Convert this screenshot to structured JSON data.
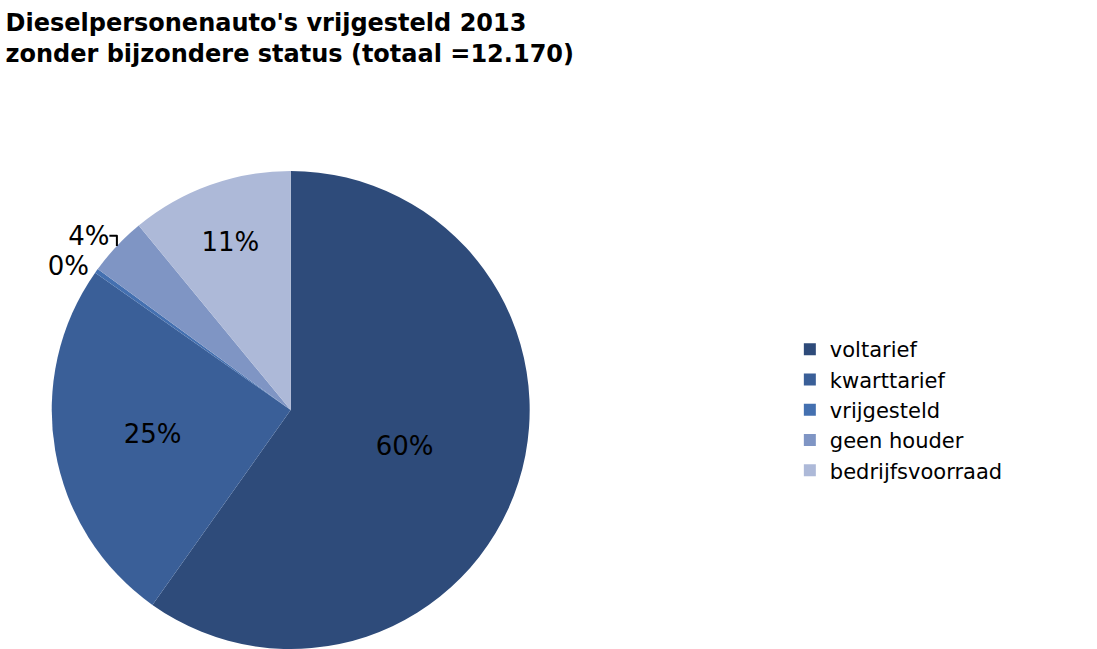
{
  "chart_data": {
    "type": "pie",
    "title": [
      "Dieselpersonenauto's vrijgesteld 2013",
      "zonder bijzondere status (totaal =12.170)"
    ],
    "categories": [
      "voltarief",
      "kwarttarief",
      "vrijgesteld",
      "geen houder",
      "bedrijfsvoorraad"
    ],
    "values": [
      60,
      25,
      0.3,
      4,
      11
    ],
    "value_labels": [
      "60%",
      "25%",
      "0%",
      "4%",
      "11%"
    ],
    "colors": [
      "#2e4b7a",
      "#3a5f98",
      "#4470b0",
      "#7f95c4",
      "#adb9d8"
    ],
    "data_labels": true,
    "legend": "right"
  }
}
